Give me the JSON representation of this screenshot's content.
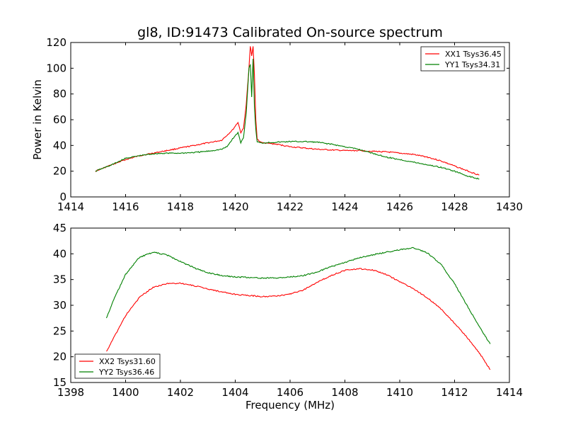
{
  "title": "gl8, ID:91473 Calibrated On-source spectrum",
  "ylabel": "Power in Kelvin",
  "xlabel": "Frequency (MHz)",
  "colors": {
    "red": "#ff0000",
    "green": "#008000"
  },
  "chart_data": [
    {
      "type": "line",
      "title": "gl8, ID:91473 Calibrated On-source spectrum",
      "xlabel": "",
      "ylabel": "Power in Kelvin",
      "xlim": [
        1414,
        1430
      ],
      "ylim": [
        0,
        120
      ],
      "xticks": [
        1414,
        1416,
        1418,
        1420,
        1422,
        1424,
        1426,
        1428,
        1430
      ],
      "yticks": [
        0,
        20,
        40,
        60,
        80,
        100,
        120
      ],
      "legend_position": "top-right",
      "series": [
        {
          "name": "XX1 Tsys36.45",
          "color": "#ff0000",
          "x": [
            1414.9,
            1415.5,
            1416.0,
            1416.5,
            1417.0,
            1417.5,
            1418.0,
            1418.5,
            1419.0,
            1419.5,
            1419.7,
            1419.9,
            1420.1,
            1420.2,
            1420.3,
            1420.4,
            1420.5,
            1420.55,
            1420.6,
            1420.65,
            1420.7,
            1420.75,
            1420.8,
            1420.9,
            1421.0,
            1421.5,
            1422.0,
            1422.5,
            1423.0,
            1423.5,
            1424.0,
            1424.5,
            1425.0,
            1425.5,
            1426.0,
            1426.5,
            1427.0,
            1427.5,
            1428.0,
            1428.5,
            1428.9
          ],
          "y": [
            20,
            25,
            29,
            32,
            34,
            36,
            38,
            40,
            42,
            44,
            48,
            52,
            58,
            50,
            53,
            72,
            100,
            117,
            110,
            117,
            95,
            60,
            45,
            43,
            42,
            41,
            39,
            38,
            37,
            36.5,
            36,
            36,
            35.5,
            35,
            34,
            33,
            31,
            28,
            24,
            20,
            17
          ]
        },
        {
          "name": "YY1 Tsys34.31",
          "color": "#008000",
          "x": [
            1414.9,
            1415.5,
            1416.0,
            1416.5,
            1417.0,
            1417.5,
            1418.0,
            1418.5,
            1419.0,
            1419.5,
            1419.7,
            1419.9,
            1420.1,
            1420.2,
            1420.3,
            1420.4,
            1420.5,
            1420.55,
            1420.6,
            1420.65,
            1420.7,
            1420.75,
            1420.8,
            1420.9,
            1421.0,
            1421.5,
            1422.0,
            1422.5,
            1423.0,
            1423.5,
            1424.0,
            1424.5,
            1425.0,
            1425.5,
            1426.0,
            1426.5,
            1427.0,
            1427.5,
            1428.0,
            1428.5,
            1428.9
          ],
          "y": [
            20,
            25,
            30,
            32,
            33.5,
            34,
            34,
            34.5,
            35.5,
            37,
            39,
            45,
            50,
            42,
            46,
            65,
            100,
            103,
            78,
            107,
            70,
            52,
            43,
            42,
            42,
            42.5,
            43,
            43,
            42.5,
            41,
            39,
            37,
            34,
            31,
            29,
            27,
            25,
            23,
            20,
            16,
            14
          ]
        }
      ]
    },
    {
      "type": "line",
      "title": "",
      "xlabel": "Frequency (MHz)",
      "ylabel": "",
      "xlim": [
        1398,
        1414
      ],
      "ylim": [
        15,
        45
      ],
      "xticks": [
        1398,
        1400,
        1402,
        1404,
        1406,
        1408,
        1410,
        1412,
        1414
      ],
      "yticks": [
        15,
        20,
        25,
        30,
        35,
        40,
        45
      ],
      "legend_position": "lower-left",
      "series": [
        {
          "name": "XX2 Tsys31.60",
          "color": "#ff0000",
          "x": [
            1399.3,
            1399.6,
            1400.0,
            1400.5,
            1401.0,
            1401.5,
            1402.0,
            1402.5,
            1403.0,
            1403.5,
            1404.0,
            1404.5,
            1405.0,
            1405.5,
            1406.0,
            1406.5,
            1407.0,
            1407.5,
            1408.0,
            1408.5,
            1409.0,
            1409.5,
            1410.0,
            1410.5,
            1411.0,
            1411.5,
            1412.0,
            1412.5,
            1413.0,
            1413.3
          ],
          "y": [
            21,
            24,
            28,
            31.5,
            33.5,
            34.2,
            34.3,
            33.8,
            33.2,
            32.6,
            32.1,
            31.9,
            31.7,
            31.8,
            32.2,
            33,
            34.5,
            35.8,
            36.8,
            37.1,
            36.9,
            36,
            34.6,
            33.2,
            31.5,
            29.3,
            26.5,
            23.5,
            20,
            17.5
          ]
        },
        {
          "name": "YY2 Tsys36.46",
          "color": "#008000",
          "x": [
            1399.3,
            1399.6,
            1400.0,
            1400.5,
            1401.0,
            1401.5,
            1402.0,
            1402.5,
            1403.0,
            1403.5,
            1404.0,
            1404.5,
            1405.0,
            1405.5,
            1406.0,
            1406.5,
            1407.0,
            1407.5,
            1408.0,
            1408.5,
            1409.0,
            1409.5,
            1410.0,
            1410.5,
            1411.0,
            1411.5,
            1412.0,
            1412.5,
            1413.0,
            1413.3
          ],
          "y": [
            27.5,
            31.5,
            36,
            39.3,
            40.3,
            39.8,
            38.5,
            37.3,
            36.3,
            35.8,
            35.5,
            35.4,
            35.3,
            35.3,
            35.5,
            35.8,
            36.5,
            37.5,
            38.3,
            39.2,
            39.8,
            40.3,
            40.8,
            41.2,
            40.2,
            38,
            34.2,
            29.5,
            25,
            22.5
          ]
        }
      ]
    }
  ]
}
